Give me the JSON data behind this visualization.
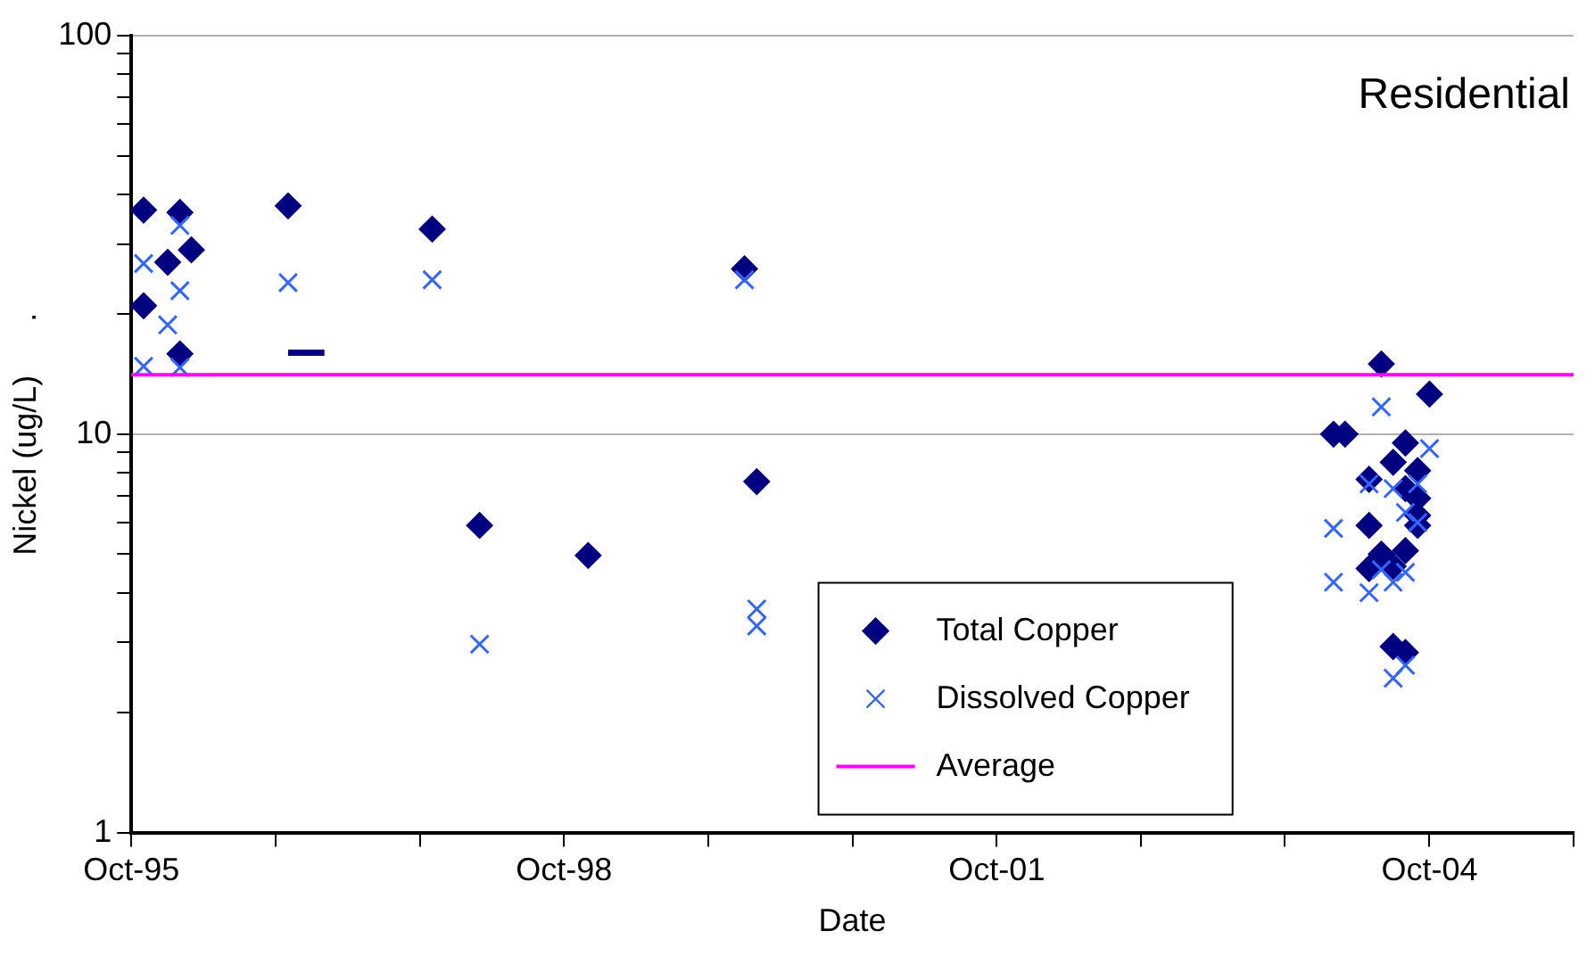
{
  "chart_data": {
    "type": "scatter",
    "xlabel": "Date",
    "ylabel": "Nickel (ug/L)      .",
    "annotations": [
      "Residential"
    ],
    "log": "y",
    "legend": "bottom",
    "grid": "y",
    "xlim": [
      "1995-10",
      "2005-10"
    ],
    "xticks": [
      {
        "value": "1995-10",
        "label": "Oct-95"
      },
      {
        "value": "1996-10",
        "label": null
      },
      {
        "value": "1997-10",
        "label": null
      },
      {
        "value": "1998-10",
        "label": "Oct-98"
      },
      {
        "value": "1999-10",
        "label": null
      },
      {
        "value": "2000-10",
        "label": null
      },
      {
        "value": "2001-10",
        "label": "Oct-01"
      },
      {
        "value": "2002-10",
        "label": null
      },
      {
        "value": "2003-10",
        "label": null
      },
      {
        "value": "2004-10",
        "label": "Oct-04"
      },
      {
        "value": "2005-10",
        "label": null
      }
    ],
    "ylim": [
      1,
      100
    ],
    "yticks": [
      1,
      {
        "value": 2,
        "label": null
      },
      {
        "value": 3,
        "label": null
      },
      {
        "value": 4,
        "label": null
      },
      {
        "value": 5,
        "label": null
      },
      {
        "value": 6,
        "label": null
      },
      {
        "value": 7,
        "label": null
      },
      {
        "value": 8,
        "label": null
      },
      {
        "value": 9,
        "label": null
      },
      10,
      {
        "value": 20,
        "label": null
      },
      {
        "value": 30,
        "label": null
      },
      {
        "value": 40,
        "label": null
      },
      {
        "value": 50,
        "label": null
      },
      {
        "value": 60,
        "label": null
      },
      {
        "value": 70,
        "label": null
      },
      {
        "value": 80,
        "label": null
      },
      {
        "value": 90,
        "label": null
      },
      100
    ],
    "series": [
      {
        "name": "Total Copper",
        "color": "#000080",
        "marker": "diamond",
        "x": [
          "1995-11",
          "1996-02",
          "1996-01",
          "1996-03",
          "1995-11",
          "1996-02",
          "1996-11",
          "1997-11",
          "2000-01",
          "1998-03",
          "1998-12",
          "2000-02",
          "2004-06",
          "2004-10",
          "2004-02",
          "2004-03",
          "2004-08",
          "2004-07",
          "2004-09",
          "2004-05",
          "2004-08",
          "2004-09",
          "2004-09",
          "2004-09",
          "2004-05",
          "2004-06",
          "2004-08",
          "2004-05",
          "2004-07",
          "2004-07",
          "2004-08"
        ],
        "values": [
          36.5,
          36,
          27,
          29,
          21,
          15.9,
          37.4,
          32.7,
          26,
          5.9,
          4.96,
          7.6,
          15,
          12.6,
          10,
          10,
          9.5,
          8.5,
          8.1,
          7.7,
          7.3,
          6.9,
          6.25,
          5.9,
          5.9,
          5,
          5.1,
          4.6,
          4.66,
          2.93,
          2.83
        ]
      },
      {
        "name": "Dissolved Copper",
        "color": "#3366ff",
        "marker": "cross",
        "x": [
          "1995-11",
          "1996-02",
          "1996-02",
          "1996-01",
          "1995-11",
          "1996-02",
          "1996-11",
          "1997-11",
          "2000-01",
          "1998-03",
          "2000-02",
          "2000-02",
          "2004-06",
          "2004-10",
          "2004-02",
          "2004-02",
          "2004-05",
          "2004-07",
          "2004-09",
          "2004-08",
          "2004-09",
          "2004-06",
          "2004-08",
          "2004-05",
          "2004-07",
          "2004-07",
          "2004-08"
        ],
        "values": [
          26.8,
          33.4,
          22.9,
          18.8,
          14.8,
          14.7,
          24,
          24.4,
          24.4,
          2.97,
          3.64,
          3.3,
          11.7,
          9.2,
          5.8,
          4.25,
          7.5,
          7.3,
          7.5,
          6.36,
          6,
          4.57,
          4.5,
          4,
          4.25,
          2.44,
          2.63
        ]
      },
      {
        "type": "line",
        "color": "#000080",
        "marker": "none",
        "x": [
          "1996-11",
          "1997-02"
        ],
        "values": [
          16,
          16
        ]
      }
    ],
    "ref_lines": [
      {
        "axis": "y",
        "value": 14.1,
        "label": "Average",
        "color": "#ff00ff"
      }
    ]
  }
}
